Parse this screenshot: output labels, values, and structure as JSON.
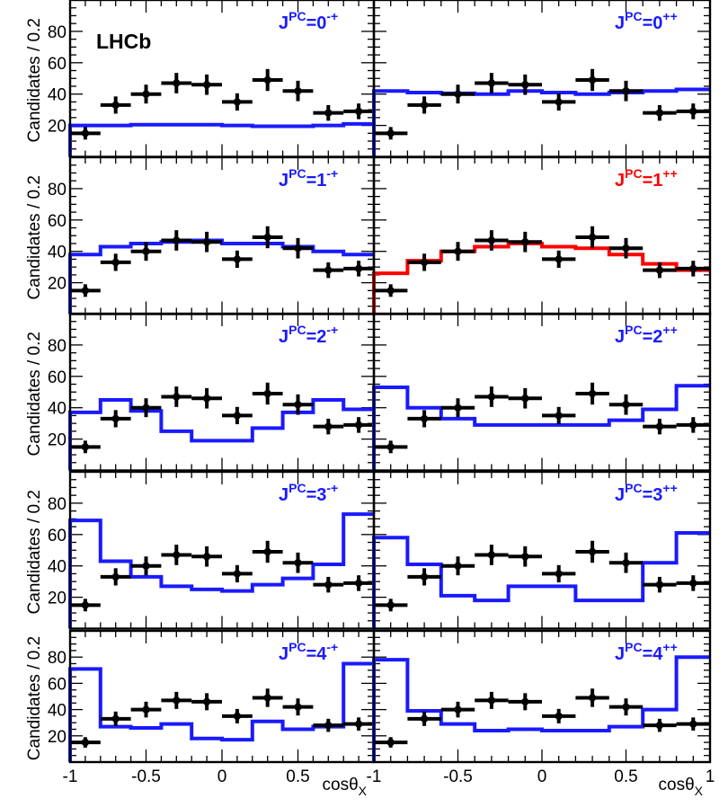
{
  "experiment_label": "LHCb",
  "ylabel": "Candidates / 0.2",
  "xlabel_main": "cosθ",
  "xlabel_sub": "X",
  "colors": {
    "data": "#000000",
    "hypothesis": "#1a1aff",
    "preferred": "#ff0000",
    "frame": "#000000"
  },
  "x_ticks": [
    "-1",
    "-0.5",
    "0",
    "0.5",
    "1"
  ],
  "y_ticks": [
    "20",
    "40",
    "60",
    "80"
  ],
  "chart_data": {
    "type": "histogram-grid",
    "rows": 5,
    "cols": 2,
    "xlim": [
      -1,
      1
    ],
    "ylim": [
      0,
      100
    ],
    "bin_edges": [
      -1,
      -0.8,
      -0.6,
      -0.4,
      -0.2,
      0,
      0.2,
      0.4,
      0.6,
      0.8,
      1
    ],
    "data_points": {
      "x": [
        -0.9,
        -0.7,
        -0.5,
        -0.3,
        -0.1,
        0.1,
        0.3,
        0.5,
        0.7,
        0.9
      ],
      "y": [
        15,
        33,
        40,
        47,
        46,
        35,
        49,
        42,
        28,
        29
      ],
      "err": [
        4,
        5.5,
        6,
        6.5,
        6.5,
        5.5,
        7,
        6.5,
        5,
        5
      ]
    },
    "panels": [
      {
        "row": 0,
        "col": 0,
        "label_jpc": "0",
        "label_sup": "-+",
        "preferred": false,
        "values": [
          20,
          20,
          20.5,
          20.5,
          20.5,
          20,
          19.5,
          19.5,
          20,
          21
        ]
      },
      {
        "row": 0,
        "col": 1,
        "label_jpc": "0",
        "label_sup": "++",
        "preferred": false,
        "values": [
          42,
          41,
          40.5,
          40,
          42,
          41,
          40,
          41,
          42,
          43
        ]
      },
      {
        "row": 1,
        "col": 0,
        "label_jpc": "1",
        "label_sup": "-+",
        "preferred": false,
        "values": [
          38,
          43,
          45,
          46,
          47,
          45,
          45,
          43,
          40,
          38
        ]
      },
      {
        "row": 1,
        "col": 1,
        "label_jpc": "1",
        "label_sup": "++",
        "preferred": true,
        "values": [
          26,
          34,
          40,
          43,
          45,
          43,
          42,
          38,
          32,
          28
        ]
      },
      {
        "row": 2,
        "col": 0,
        "label_jpc": "2",
        "label_sup": "-+",
        "preferred": false,
        "values": [
          37,
          45,
          38,
          25,
          19,
          19,
          27,
          37,
          45,
          39
        ]
      },
      {
        "row": 2,
        "col": 1,
        "label_jpc": "2",
        "label_sup": "++",
        "preferred": false,
        "values": [
          53,
          40,
          33,
          29,
          29,
          29,
          29,
          32,
          39,
          54
        ]
      },
      {
        "row": 3,
        "col": 0,
        "label_jpc": "3",
        "label_sup": "-+",
        "preferred": false,
        "values": [
          69,
          43,
          33,
          27,
          25,
          24,
          28,
          32,
          41,
          73
        ]
      },
      {
        "row": 3,
        "col": 1,
        "label_jpc": "3",
        "label_sup": "++",
        "preferred": false,
        "values": [
          58,
          41,
          21,
          18,
          27,
          27,
          18,
          18,
          42,
          61
        ]
      },
      {
        "row": 4,
        "col": 0,
        "label_jpc": "4",
        "label_sup": "-+",
        "preferred": false,
        "values": [
          71,
          27,
          26,
          29,
          18,
          17,
          31,
          25,
          27,
          75
        ]
      },
      {
        "row": 4,
        "col": 1,
        "label_jpc": "4",
        "label_sup": "++",
        "preferred": false,
        "values": [
          78,
          39,
          29,
          24,
          25,
          24,
          24,
          27,
          40,
          80
        ]
      }
    ]
  }
}
